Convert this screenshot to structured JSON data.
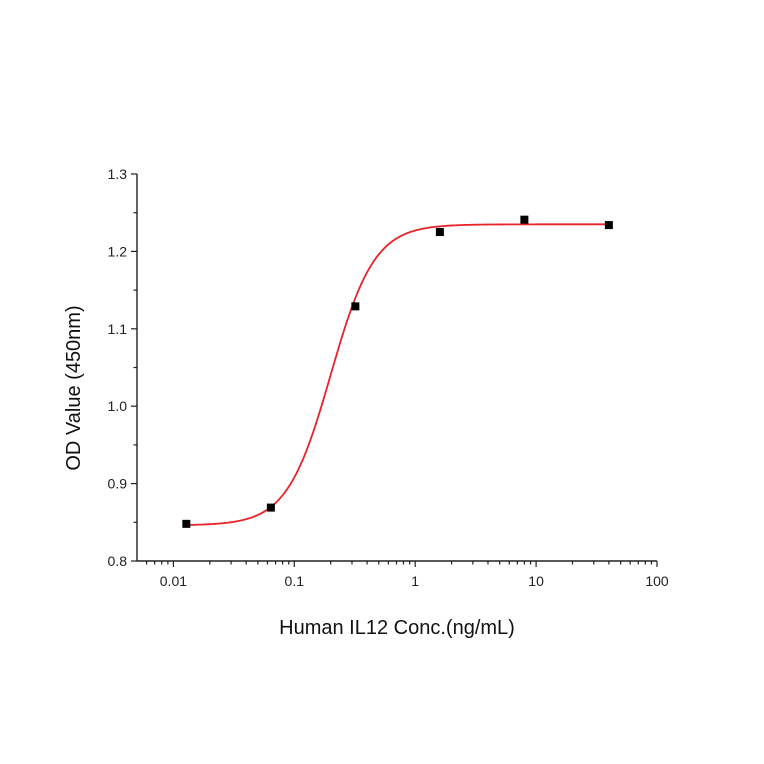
{
  "chart_data": {
    "type": "scatter",
    "title": "",
    "xlabel": "Human IL12 Conc.(ng/mL)",
    "ylabel": "OD Value (450nm)",
    "x_scale": "log",
    "xlim": [
      0.005,
      100
    ],
    "ylim": [
      0.8,
      1.3
    ],
    "x_ticks": [
      0.01,
      0.1,
      1,
      10,
      100
    ],
    "x_tick_labels": [
      "0.01",
      "0.1",
      "1",
      "10",
      "100"
    ],
    "y_ticks": [
      0.8,
      0.9,
      1.0,
      1.1,
      1.2,
      1.3
    ],
    "y_tick_labels": [
      "0.8",
      "0.9",
      "1.0",
      "1.1",
      "1.2",
      "1.3"
    ],
    "grid": false,
    "legend": false,
    "series": [
      {
        "kind": "points",
        "color": "#000000",
        "x": [
          0.0128,
          0.064,
          0.32,
          1.6,
          8,
          40
        ],
        "y": [
          0.848,
          0.869,
          1.129,
          1.225,
          1.241,
          1.234
        ]
      },
      {
        "kind": "fit-curve",
        "color": "#e8232a",
        "model": "4PL",
        "bottom": 0.846,
        "top": 1.235,
        "ec50": 0.2,
        "hill": 2.4,
        "x_range": [
          0.0128,
          40
        ]
      }
    ]
  }
}
